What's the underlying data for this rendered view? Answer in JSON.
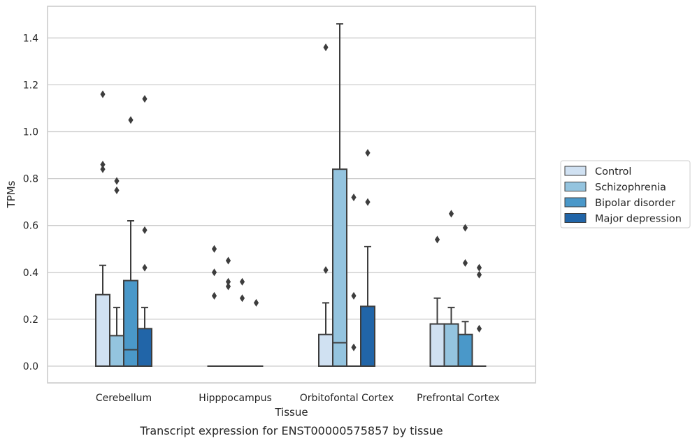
{
  "caption": "Transcript expression for ENST00000575857 by tissue",
  "chart_data": {
    "type": "box",
    "xlabel": "Tissue",
    "ylabel": "TPMs",
    "ylim": [
      -0.07,
      1.54
    ],
    "yticks": [
      "0.0",
      "0.2",
      "0.4",
      "0.6",
      "0.8",
      "1.0",
      "1.2",
      "1.4"
    ],
    "grid": "horizontal",
    "legend_position": "right",
    "categories": [
      "Cerebellum",
      "Hipppocampus",
      "Orbitofontal Cortex",
      "Prefrontal Cortex"
    ],
    "series": [
      {
        "name": "Control",
        "color": "#d0e1f2",
        "boxes": [
          {
            "q1": 0.0,
            "median": 0.0,
            "q3": 0.305,
            "whisker_low": 0.0,
            "whisker_high": 0.43,
            "outliers": [
              0.84,
              0.86,
              1.16
            ]
          },
          {
            "q1": 0.0,
            "median": 0.0,
            "q3": 0.0,
            "whisker_low": 0.0,
            "whisker_high": 0.0,
            "outliers": [
              0.3,
              0.4,
              0.5
            ]
          },
          {
            "q1": 0.0,
            "median": 0.0,
            "q3": 0.135,
            "whisker_low": 0.0,
            "whisker_high": 0.27,
            "outliers": [
              0.41,
              1.36
            ]
          },
          {
            "q1": 0.0,
            "median": 0.0,
            "q3": 0.18,
            "whisker_low": 0.0,
            "whisker_high": 0.29,
            "outliers": [
              0.54
            ]
          }
        ]
      },
      {
        "name": "Schizophrenia",
        "color": "#94c4df",
        "boxes": [
          {
            "q1": 0.0,
            "median": 0.0,
            "q3": 0.13,
            "whisker_low": 0.0,
            "whisker_high": 0.25,
            "outliers": [
              0.75,
              0.79
            ]
          },
          {
            "q1": 0.0,
            "median": 0.0,
            "q3": 0.0,
            "whisker_low": 0.0,
            "whisker_high": 0.0,
            "outliers": [
              0.34,
              0.36,
              0.45
            ]
          },
          {
            "q1": 0.0,
            "median": 0.1,
            "q3": 0.84,
            "whisker_low": 0.0,
            "whisker_high": 1.46,
            "outliers": []
          },
          {
            "q1": 0.0,
            "median": 0.0,
            "q3": 0.18,
            "whisker_low": 0.0,
            "whisker_high": 0.25,
            "outliers": [
              0.65
            ]
          }
        ]
      },
      {
        "name": "Bipolar disorder",
        "color": "#4a98c9",
        "boxes": [
          {
            "q1": 0.0,
            "median": 0.07,
            "q3": 0.365,
            "whisker_low": 0.0,
            "whisker_high": 0.62,
            "outliers": [
              1.05
            ]
          },
          {
            "q1": 0.0,
            "median": 0.0,
            "q3": 0.0,
            "whisker_low": 0.0,
            "whisker_high": 0.0,
            "outliers": [
              0.29,
              0.36
            ]
          },
          {
            "q1": 0.0,
            "median": 0.0,
            "q3": 0.0,
            "whisker_low": 0.0,
            "whisker_high": 0.0,
            "outliers": [
              0.08,
              0.3,
              0.72
            ]
          },
          {
            "q1": 0.0,
            "median": 0.0,
            "q3": 0.135,
            "whisker_low": 0.0,
            "whisker_high": 0.19,
            "outliers": [
              0.44,
              0.59
            ]
          }
        ]
      },
      {
        "name": "Major depression",
        "color": "#2165a8",
        "boxes": [
          {
            "q1": 0.0,
            "median": 0.0,
            "q3": 0.16,
            "whisker_low": 0.0,
            "whisker_high": 0.25,
            "outliers": [
              0.42,
              0.58,
              1.14
            ]
          },
          {
            "q1": 0.0,
            "median": 0.0,
            "q3": 0.0,
            "whisker_low": 0.0,
            "whisker_high": 0.0,
            "outliers": [
              0.27
            ]
          },
          {
            "q1": 0.0,
            "median": 0.0,
            "q3": 0.255,
            "whisker_low": 0.0,
            "whisker_high": 0.51,
            "outliers": [
              0.7,
              0.91
            ]
          },
          {
            "q1": 0.0,
            "median": 0.0,
            "q3": 0.0,
            "whisker_low": 0.0,
            "whisker_high": 0.0,
            "outliers": [
              0.16,
              0.39,
              0.42
            ]
          }
        ]
      }
    ]
  }
}
